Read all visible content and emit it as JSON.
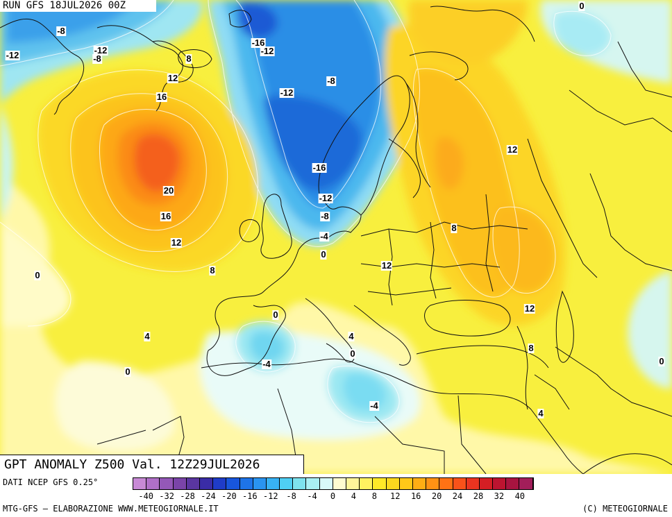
{
  "header": {
    "run_label": "RUN GFS 18JUL2026 00Z"
  },
  "title": "GPT ANOMALY Z500 Val. 12Z29JUL2026",
  "contour_labels": [
    {
      "text": "-8"
    },
    {
      "text": "-12"
    },
    {
      "text": "-12"
    },
    {
      "text": "-8"
    },
    {
      "text": "-16"
    },
    {
      "text": "-12"
    },
    {
      "text": "0"
    },
    {
      "text": "8"
    },
    {
      "text": "12"
    },
    {
      "text": "16"
    },
    {
      "text": "-12"
    },
    {
      "text": "-8"
    },
    {
      "text": "20"
    },
    {
      "text": "16"
    },
    {
      "text": "12"
    },
    {
      "text": "-16"
    },
    {
      "text": "12"
    },
    {
      "text": "-12"
    },
    {
      "text": "-8"
    },
    {
      "text": "-4"
    },
    {
      "text": "0"
    },
    {
      "text": "8"
    },
    {
      "text": "0"
    },
    {
      "text": "8"
    },
    {
      "text": "12"
    },
    {
      "text": "0"
    },
    {
      "text": "4"
    },
    {
      "text": "12"
    },
    {
      "text": "4"
    },
    {
      "text": "0"
    },
    {
      "text": "-4"
    },
    {
      "text": "0"
    },
    {
      "text": "8"
    },
    {
      "text": "0"
    },
    {
      "text": "-4"
    },
    {
      "text": "4"
    }
  ],
  "footer": {
    "data_source": "DATI NCEP GFS 0.25°",
    "credit_left": "MTG-GFS — ELABORAZIONE WWW.METEOGIORNALE.IT",
    "credit_right": "(C) METEOGIORNALE"
  },
  "legend": {
    "tick_labels": [
      "-40",
      "-32",
      "-28",
      "-24",
      "-20",
      "-16",
      "-12",
      "-8",
      "-4",
      "0",
      "4",
      "8",
      "12",
      "16",
      "20",
      "24",
      "28",
      "32",
      "40"
    ],
    "colors": [
      "#c88ad6",
      "#b070c8",
      "#9458b8",
      "#7a44a8",
      "#5a36a0",
      "#3a2ca6",
      "#1f3cc8",
      "#1856dc",
      "#1e74e8",
      "#2a94f0",
      "#38b2f4",
      "#4fcff4",
      "#7ee2ee",
      "#aaf0f4",
      "#d8fafa",
      "#fffbd0",
      "#fff59a",
      "#fff260",
      "#ffe828",
      "#fcd81e",
      "#ffc818",
      "#ffae14",
      "#ff9214",
      "#ff7214",
      "#f8521a",
      "#ea3420",
      "#d41e24",
      "#bc1430",
      "#a81440",
      "#a21e5a"
    ]
  }
}
